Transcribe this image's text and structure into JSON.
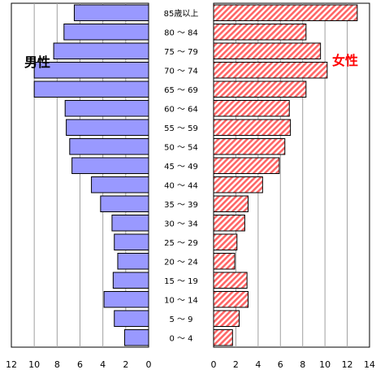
{
  "chart_data": {
    "type": "bar",
    "orientation": "horizontal",
    "layout": "population-pyramid",
    "categories": [
      "85歳以上",
      "80 ～ 84",
      "75 ～ 79",
      "70 ～ 74",
      "65 ～ 69",
      "60 ～ 64",
      "55 ～ 59",
      "50 ～ 54",
      "45 ～ 49",
      "40 ～ 44",
      "35 ～ 39",
      "30 ～ 34",
      "25 ～ 29",
      "20 ～ 24",
      "15 ～ 19",
      "10 ～ 14",
      "5 ～ 9",
      "0 ～ 4"
    ],
    "series": [
      {
        "name": "男性",
        "values": [
          6.5,
          7.4,
          8.3,
          10.0,
          10.0,
          7.3,
          7.2,
          6.9,
          6.7,
          5.0,
          4.2,
          3.2,
          3.0,
          2.7,
          3.1,
          3.9,
          3.0,
          2.1
        ],
        "color": "#9999ff",
        "xlim": [
          0,
          12
        ],
        "ticks": [
          "12",
          "10",
          "8",
          "6",
          "4",
          "2",
          "0"
        ],
        "reversed": true,
        "grid": true
      },
      {
        "name": "女性",
        "values": [
          12.9,
          8.3,
          9.6,
          10.2,
          8.3,
          6.8,
          6.9,
          6.4,
          5.9,
          4.4,
          3.1,
          2.8,
          2.1,
          1.9,
          3.0,
          3.1,
          2.3,
          1.7
        ],
        "color": "#ff6666",
        "pattern": "diagonal-hatch",
        "xlim": [
          0,
          14
        ],
        "ticks": [
          "0",
          "2",
          "4",
          "6",
          "8",
          "10",
          "12",
          "14"
        ],
        "reversed": false,
        "grid": true
      }
    ],
    "label_colors": {
      "male": "#000000",
      "female": "#ff0000"
    }
  }
}
